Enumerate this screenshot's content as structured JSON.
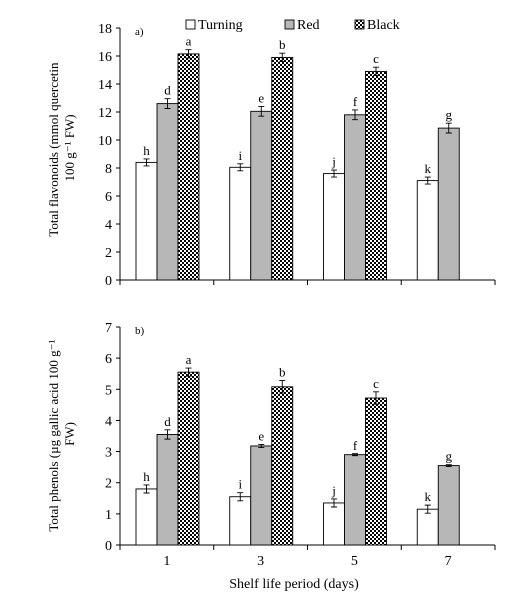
{
  "legend": {
    "items": [
      {
        "label": "Turning",
        "key": "turning"
      },
      {
        "label": "Red",
        "key": "red"
      },
      {
        "label": "Black",
        "key": "black"
      }
    ]
  },
  "colors": {
    "turning": "#ffffff",
    "red": "#b7b7b7",
    "black_pattern": "checkerboard"
  },
  "xlabel": "Shelf life period (days)",
  "chart_data": [
    {
      "type": "bar",
      "panel_label": "a)",
      "ylabel_lines": [
        "Total flavonoids (mmol quercetin",
        "100 g⁻¹ FW)"
      ],
      "categories": [
        "1",
        "3",
        "5",
        "7"
      ],
      "ylim": [
        0,
        18
      ],
      "yticks": [
        0,
        2,
        4,
        6,
        8,
        10,
        12,
        14,
        16,
        18
      ],
      "series": [
        {
          "name": "Turning",
          "values": [
            8.4,
            8.05,
            7.6,
            7.1
          ],
          "errors": [
            0.25,
            0.25,
            0.25,
            0.25
          ],
          "letters": [
            "h",
            "i",
            "j",
            "k"
          ]
        },
        {
          "name": "Red",
          "values": [
            12.6,
            12.05,
            11.8,
            10.85
          ],
          "errors": [
            0.35,
            0.35,
            0.35,
            0.35
          ],
          "letters": [
            "d",
            "e",
            "f",
            "g"
          ]
        },
        {
          "name": "Black",
          "values": [
            16.15,
            15.9,
            14.9,
            null
          ],
          "errors": [
            0.3,
            0.3,
            0.3,
            null
          ],
          "letters": [
            "a",
            "b",
            "c",
            null
          ]
        }
      ]
    },
    {
      "type": "bar",
      "panel_label": "b)",
      "ylabel_lines": [
        "Total phenols (µg gallic acid 100 g⁻¹",
        "FW)"
      ],
      "categories": [
        "1",
        "3",
        "5",
        "7"
      ],
      "ylim": [
        0,
        7
      ],
      "yticks": [
        0,
        1,
        2,
        3,
        4,
        5,
        6,
        7
      ],
      "series": [
        {
          "name": "Turning",
          "values": [
            1.8,
            1.55,
            1.35,
            1.15
          ],
          "errors": [
            0.13,
            0.13,
            0.13,
            0.13
          ],
          "letters": [
            "h",
            "i",
            "j",
            "k"
          ]
        },
        {
          "name": "Red",
          "values": [
            3.55,
            3.18,
            2.9,
            2.55
          ],
          "errors": [
            0.15,
            0.05,
            0.03,
            0.03
          ],
          "letters": [
            "d",
            "e",
            "f",
            "g"
          ]
        },
        {
          "name": "Black",
          "values": [
            5.55,
            5.08,
            4.72,
            null
          ],
          "errors": [
            0.13,
            0.2,
            0.2,
            null
          ],
          "letters": [
            "a",
            "b",
            "c",
            null
          ]
        }
      ]
    }
  ]
}
